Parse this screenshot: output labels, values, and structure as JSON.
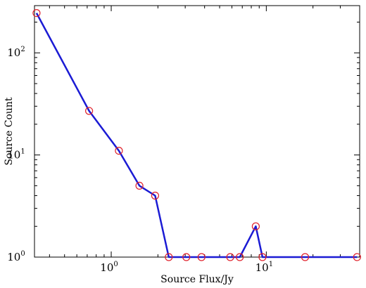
{
  "chart_data": {
    "type": "line",
    "title": "",
    "xlabel": "Source Flux/Jy",
    "ylabel": "Source Count",
    "xscale": "log",
    "yscale": "log",
    "xlim": [
      0.32,
      40
    ],
    "ylim": [
      1,
      290
    ],
    "grid": false,
    "legend": "none",
    "x_ticks": [
      {
        "value": 1,
        "base": "10",
        "exp": "0"
      },
      {
        "value": 10,
        "base": "10",
        "exp": "1"
      }
    ],
    "y_ticks": [
      {
        "value": 1,
        "base": "10",
        "exp": "0"
      },
      {
        "value": 10,
        "base": "10",
        "exp": "1"
      },
      {
        "value": 100,
        "base": "10",
        "exp": "2"
      }
    ],
    "series": [
      {
        "x": [
          0.33,
          0.72,
          1.12,
          1.52,
          1.92,
          2.35,
          3.05,
          3.82,
          5.85,
          6.75,
          8.55,
          9.45,
          17.8,
          38.5
        ],
        "y": [
          245,
          27,
          11,
          5,
          4,
          1,
          1,
          1,
          1,
          1,
          2,
          1,
          1,
          1
        ],
        "line_color": "#1b1bd4",
        "marker_color": "#e0202a",
        "marker": "circle"
      }
    ]
  }
}
